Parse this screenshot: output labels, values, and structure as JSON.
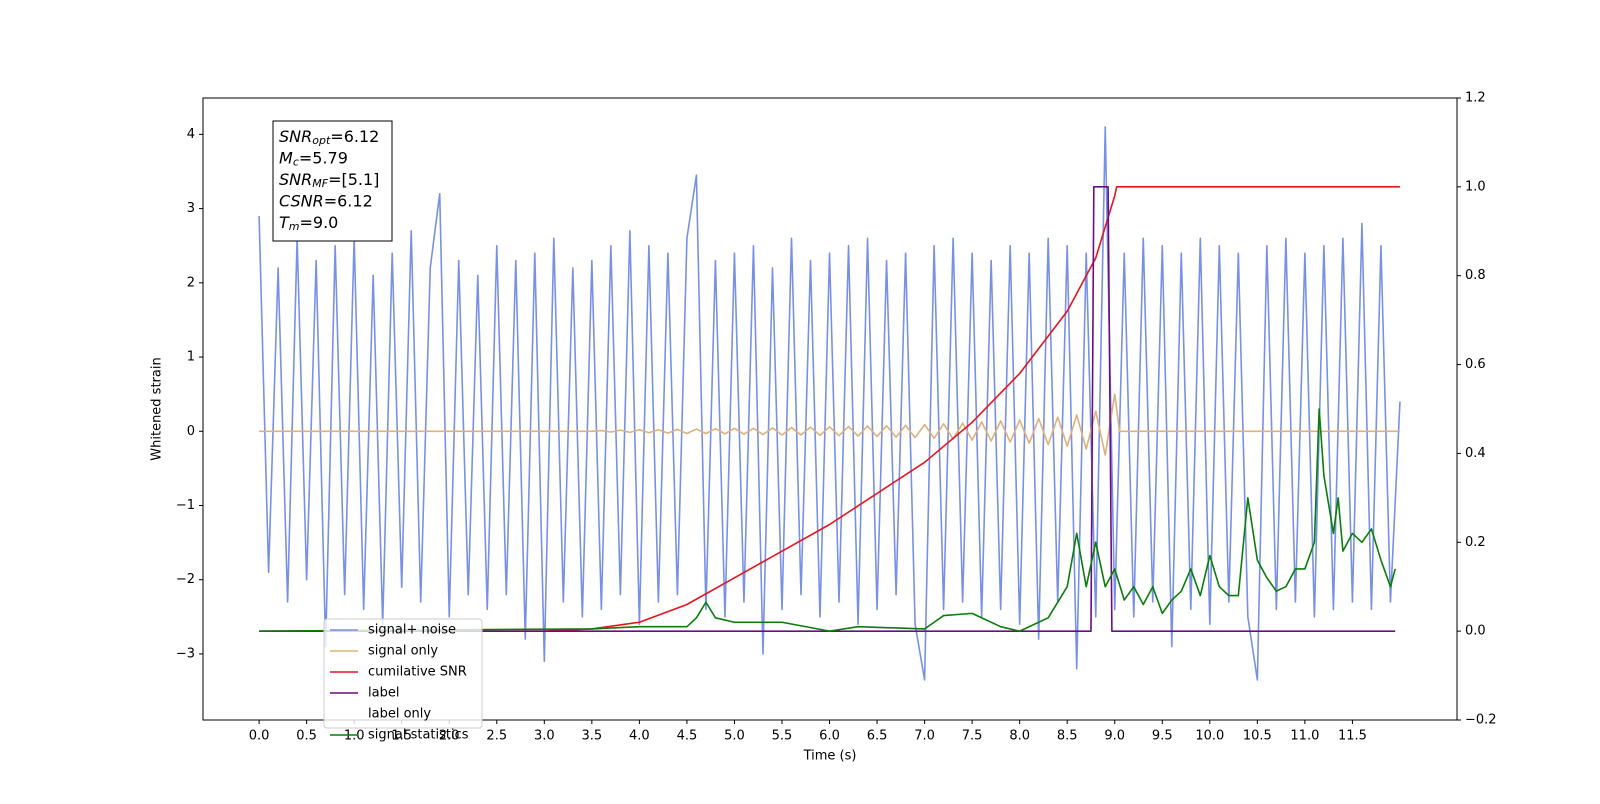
{
  "chart_data": {
    "type": "line",
    "xlabel": "Time (s)",
    "ylabel": "Whitened strain",
    "xlim": [
      -0.59,
      12.6
    ],
    "ylim": [
      -3.89,
      4.49
    ],
    "y2lim": [
      -0.2,
      1.2
    ],
    "xticks": [
      {
        "value": 0,
        "label": "0.0"
      },
      0.5,
      {
        "value": 1,
        "label": "1.0"
      },
      1.5,
      {
        "value": 2,
        "label": "2.0"
      },
      2.5,
      {
        "value": 3,
        "label": "3.0"
      },
      3.5,
      {
        "value": 4,
        "label": "4.0"
      },
      4.5,
      {
        "value": 5,
        "label": "5.0"
      },
      5.5,
      {
        "value": 6,
        "label": "6.0"
      },
      6.5,
      {
        "value": 7,
        "label": "7.0"
      },
      7.5,
      {
        "value": 8,
        "label": "8.0"
      },
      8.5,
      {
        "value": 9,
        "label": "9.0"
      },
      9.5,
      {
        "value": 10,
        "label": "10.0"
      },
      10.5,
      {
        "value": 11,
        "label": "11.0"
      },
      11.5
    ],
    "yticks": [
      {
        "value": -3,
        "label": "−3"
      },
      {
        "value": -2,
        "label": "−2"
      },
      {
        "value": -1,
        "label": "−1"
      },
      0,
      1,
      2,
      3,
      4
    ],
    "y2ticks": [
      {
        "value": -0.2,
        "label": "−0.2"
      },
      {
        "value": 0,
        "label": "0.0"
      },
      0.2,
      0.4,
      0.6,
      0.8,
      {
        "value": 1,
        "label": "1.0"
      },
      1.2
    ],
    "annotation": [
      {
        "main": "SNR",
        "sub": "opt",
        "rest": "=6.12"
      },
      {
        "main": "M",
        "sub": "c",
        "rest": "=5.79"
      },
      {
        "main": "SNR",
        "sub": "MF",
        "rest": "=[5.1]"
      },
      {
        "main": "CSNR",
        "sub": null,
        "rest": "=6.12"
      },
      {
        "main": "T",
        "sub": "m",
        "rest": "=9.0"
      }
    ],
    "series": [
      {
        "name": "signal+ noise",
        "color": "#7891e6",
        "axis": "y",
        "x": [
          0,
          0.1,
          0.2,
          0.3,
          0.4,
          0.5,
          0.6,
          0.7,
          0.8,
          0.9,
          1,
          1.1,
          1.2,
          1.3,
          1.4,
          1.5,
          1.6,
          1.7,
          1.8,
          1.9,
          2,
          2.1,
          2.2,
          2.3,
          2.4,
          2.5,
          2.6,
          2.7,
          2.8,
          2.9,
          3,
          3.1,
          3.2,
          3.3,
          3.4,
          3.5,
          3.6,
          3.7,
          3.8,
          3.9,
          4,
          4.1,
          4.2,
          4.3,
          4.4,
          4.5,
          4.6,
          4.7,
          4.8,
          4.9,
          5,
          5.1,
          5.2,
          5.3,
          5.4,
          5.5,
          5.6,
          5.7,
          5.8,
          5.9,
          6,
          6.1,
          6.2,
          6.3,
          6.4,
          6.5,
          6.6,
          6.7,
          6.8,
          6.9,
          7,
          7.1,
          7.2,
          7.3,
          7.4,
          7.5,
          7.6,
          7.7,
          7.8,
          7.9,
          8,
          8.1,
          8.2,
          8.3,
          8.4,
          8.5,
          8.6,
          8.7,
          8.8,
          8.9,
          9,
          9.1,
          9.2,
          9.3,
          9.4,
          9.5,
          9.6,
          9.7,
          9.8,
          9.9,
          10,
          10.1,
          10.2,
          10.3,
          10.4,
          10.5,
          10.6,
          10.7,
          10.8,
          10.9,
          11,
          11.1,
          11.2,
          11.3,
          11.4,
          11.5,
          11.6,
          11.7,
          11.8,
          11.9,
          12
        ],
        "values": [
          2.9,
          -1.9,
          2.2,
          -2.3,
          2.6,
          -2.0,
          2.3,
          -2.9,
          2.5,
          -2.2,
          2.6,
          -2.4,
          2.1,
          -2.6,
          2.4,
          -2.1,
          2.7,
          -2.3,
          2.2,
          3.2,
          -2.5,
          2.3,
          -2.2,
          2.1,
          -2.4,
          2.5,
          -2.2,
          2.3,
          -2.8,
          2.4,
          -3.1,
          2.6,
          -2.3,
          2.2,
          -2.5,
          2.3,
          -2.4,
          2.5,
          -2.2,
          2.7,
          -2.6,
          2.5,
          -2.3,
          2.4,
          -2.2,
          2.6,
          3.45,
          -2.4,
          2.3,
          -2.5,
          2.4,
          -2.3,
          2.5,
          -3.0,
          2.2,
          -2.4,
          2.6,
          -2.2,
          2.3,
          -2.5,
          2.4,
          -2.3,
          2.5,
          -2.6,
          2.6,
          -2.4,
          2.3,
          -2.2,
          2.4,
          -2.6,
          -3.35,
          2.5,
          -2.4,
          2.6,
          -2.3,
          2.4,
          -2.5,
          2.3,
          -2.4,
          2.5,
          -2.6,
          2.4,
          -2.8,
          2.6,
          -2.3,
          2.5,
          -3.2,
          2.4,
          -2.5,
          4.1,
          -2.4,
          2.4,
          -2.5,
          2.6,
          -2.3,
          2.5,
          -2.9,
          2.4,
          -2.4,
          2.6,
          -2.6,
          2.5,
          -2.3,
          2.4,
          -2.5,
          -3.35,
          2.5,
          -2.4,
          2.6,
          -2.3,
          2.4,
          -2.5,
          2.5,
          -2.4,
          2.6,
          -2.3,
          2.8,
          -2.4,
          2.5,
          -2.3,
          0.4
        ]
      },
      {
        "name": "signal only",
        "color": "#e0b07a",
        "axis": "y",
        "x": [
          0,
          3.5,
          3.6,
          3.7,
          3.8,
          3.9,
          4,
          4.1,
          4.2,
          4.3,
          4.4,
          4.5,
          4.6,
          4.7,
          4.8,
          4.9,
          5,
          5.1,
          5.2,
          5.3,
          5.4,
          5.5,
          5.6,
          5.7,
          5.8,
          5.9,
          6,
          6.1,
          6.2,
          6.3,
          6.4,
          6.5,
          6.6,
          6.7,
          6.8,
          6.9,
          7,
          7.1,
          7.2,
          7.3,
          7.4,
          7.5,
          7.6,
          7.7,
          7.8,
          7.9,
          8,
          8.1,
          8.2,
          8.3,
          8.4,
          8.5,
          8.6,
          8.7,
          8.8,
          8.9,
          9,
          9.05,
          12
        ],
        "values": [
          0,
          0,
          0.01,
          -0.01,
          0.015,
          -0.015,
          0.02,
          -0.02,
          0.02,
          -0.025,
          0.025,
          -0.03,
          0.03,
          -0.03,
          0.035,
          -0.035,
          0.04,
          -0.04,
          0.04,
          -0.045,
          0.045,
          -0.05,
          0.05,
          -0.05,
          0.055,
          -0.055,
          0.06,
          -0.06,
          0.065,
          -0.065,
          0.07,
          -0.07,
          0.075,
          -0.08,
          0.08,
          -0.085,
          0.09,
          -0.095,
          0.1,
          -0.105,
          0.11,
          -0.12,
          0.125,
          -0.13,
          0.14,
          -0.145,
          0.15,
          -0.16,
          0.17,
          -0.18,
          0.19,
          -0.2,
          0.22,
          -0.24,
          0.27,
          -0.32,
          0.5,
          0,
          0
        ]
      },
      {
        "name": "cumilative SNR",
        "color": "#e8141c",
        "axis": "y2",
        "x": [
          0,
          3,
          3.5,
          4,
          4.5,
          5,
          5.5,
          6,
          6.5,
          7,
          7.5,
          8,
          8.5,
          8.8,
          9,
          9.02,
          12
        ],
        "values": [
          0,
          0,
          0.005,
          0.02,
          0.06,
          0.12,
          0.18,
          0.24,
          0.31,
          0.38,
          0.47,
          0.58,
          0.72,
          0.84,
          0.98,
          1,
          1
        ]
      },
      {
        "name": "label",
        "color": "#6a0d83",
        "axis": "y2",
        "x": [
          0,
          8.75,
          8.78,
          8.93,
          8.97,
          11.95
        ],
        "values": [
          0,
          0,
          1,
          1,
          0,
          0
        ]
      },
      {
        "name": "label only",
        "color": "#ffffff",
        "axis": "y2",
        "x": [],
        "values": []
      },
      {
        "name": "signal statistics",
        "color": "#0a7d0a",
        "axis": "y2",
        "x": [
          0,
          3.5,
          4,
          4.5,
          4.6,
          4.7,
          4.8,
          5,
          5.5,
          6,
          6.3,
          7,
          7.1,
          7.2,
          7.5,
          7.8,
          8,
          8.3,
          8.5,
          8.6,
          8.7,
          8.8,
          8.9,
          9,
          9.1,
          9.2,
          9.3,
          9.4,
          9.5,
          9.6,
          9.7,
          9.8,
          9.9,
          10,
          10.1,
          10.2,
          10.3,
          10.4,
          10.5,
          10.6,
          10.7,
          10.8,
          10.9,
          11,
          11.1,
          11.15,
          11.2,
          11.3,
          11.35,
          11.4,
          11.5,
          11.6,
          11.7,
          11.8,
          11.9,
          11.95
        ],
        "values": [
          0,
          0.005,
          0.01,
          0.01,
          0.03,
          0.065,
          0.03,
          0.02,
          0.02,
          0,
          0.01,
          0.005,
          0.02,
          0.035,
          0.04,
          0.01,
          0,
          0.03,
          0.1,
          0.22,
          0.1,
          0.2,
          0.1,
          0.14,
          0.07,
          0.1,
          0.06,
          0.1,
          0.04,
          0.07,
          0.09,
          0.14,
          0.08,
          0.17,
          0.1,
          0.08,
          0.08,
          0.3,
          0.16,
          0.12,
          0.09,
          0.1,
          0.14,
          0.14,
          0.2,
          0.5,
          0.35,
          0.22,
          0.3,
          0.18,
          0.22,
          0.2,
          0.23,
          0.16,
          0.1,
          0.14
        ]
      }
    ]
  }
}
